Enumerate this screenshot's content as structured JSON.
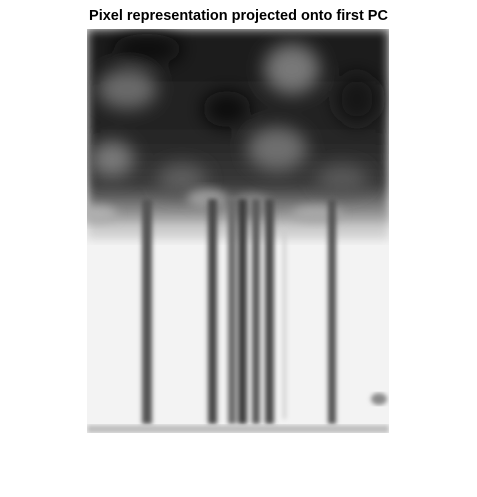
{
  "figure": {
    "title": "Pixel representation projected onto first PC"
  }
}
